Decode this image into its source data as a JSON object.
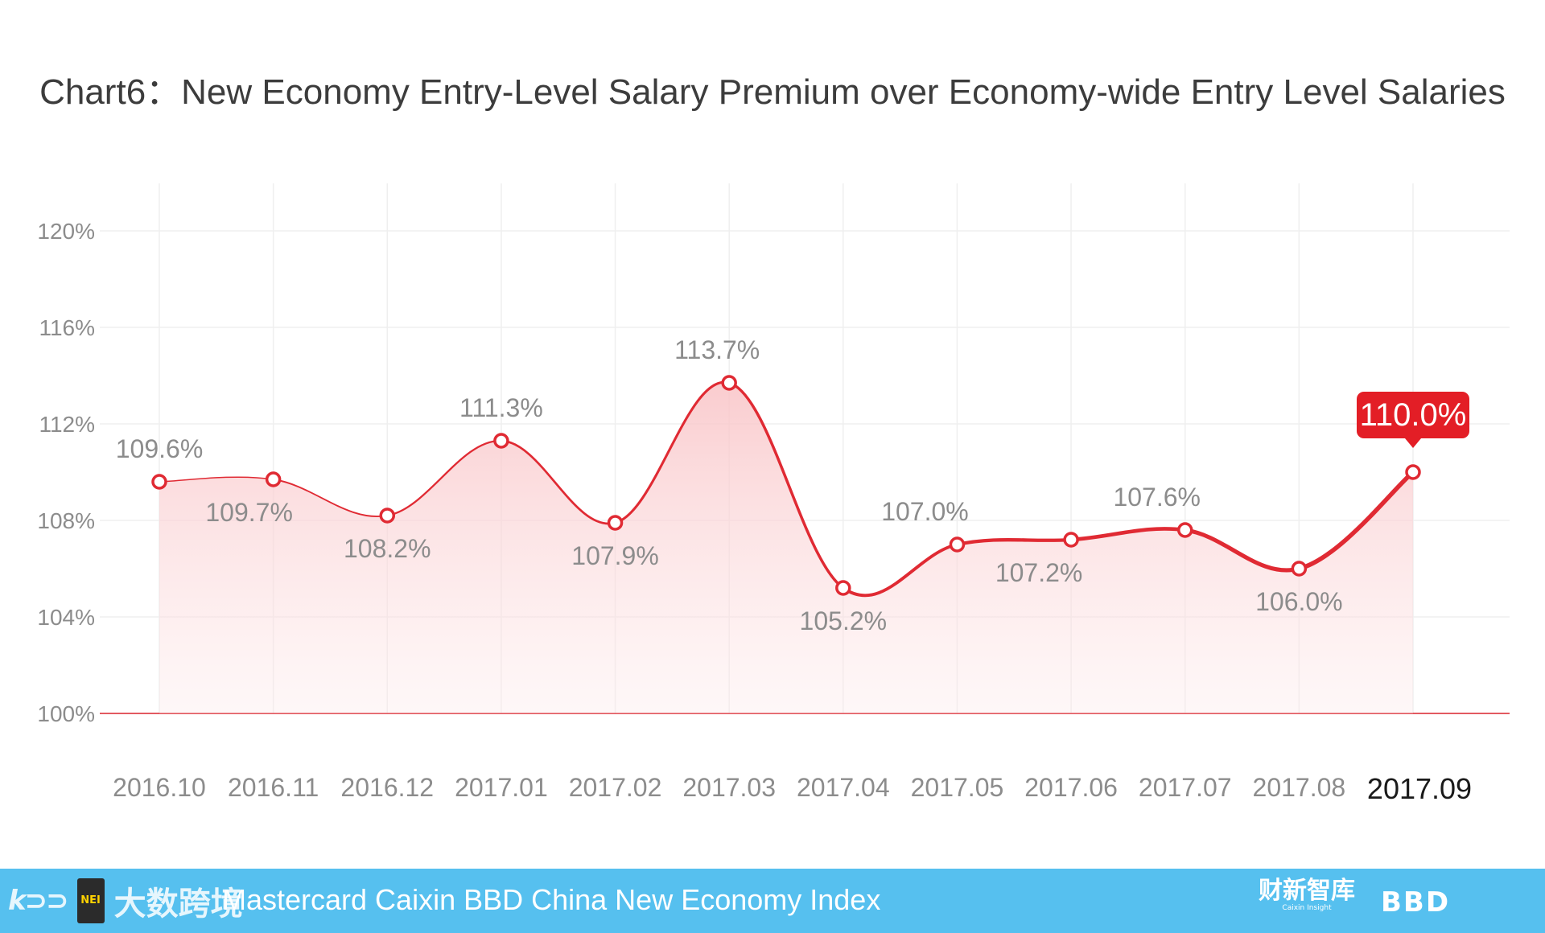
{
  "chart_data": {
    "type": "area",
    "title": "Chart6：New Economy Entry-Level Salary Premium over Economy-wide Entry Level Salaries",
    "xlabel": "",
    "ylabel": "",
    "categories": [
      "2016.10",
      "2016.11",
      "2016.12",
      "2017.01",
      "2017.02",
      "2017.03",
      "2017.04",
      "2017.05",
      "2017.06",
      "2017.07",
      "2017.08",
      "2017.09"
    ],
    "series": [
      {
        "values": [
          109.6,
          109.7,
          108.2,
          111.3,
          107.9,
          113.7,
          105.2,
          107.0,
          107.2,
          107.6,
          106.0,
          110.0
        ]
      }
    ],
    "data_labels": [
      "109.6%",
      "109.7%",
      "108.2%",
      "111.3%",
      "107.9%",
      "113.7%",
      "105.2%",
      "107.0%",
      "107.2%",
      "107.6%",
      "106.0%",
      "110.0%"
    ],
    "ylim": [
      100,
      120
    ],
    "yticks": [
      100,
      104,
      108,
      112,
      116,
      120
    ],
    "ytick_labels": [
      "100%",
      "104%",
      "108%",
      "112%",
      "116%",
      "120%"
    ],
    "grid": true,
    "highlight_index": 11,
    "colors": {
      "line": "#e02a33",
      "fill": "#fbd4d6",
      "highlight_bg": "#e31e26",
      "baseline": "#d9232d",
      "grid": "#efefef",
      "tick_text": "#8c8c8c",
      "label_text": "#8c8c8c"
    }
  },
  "footer": {
    "watermark_logo": "k⊃⊃",
    "watermark_text": "大数跨境",
    "badge_text": "NEI",
    "index_name": "Mastercard Caixin BBD China New Economy Index",
    "caixin_logo": "财新智库",
    "caixin_sub": "Caixin Insight",
    "bbd_logo": "BBD"
  }
}
